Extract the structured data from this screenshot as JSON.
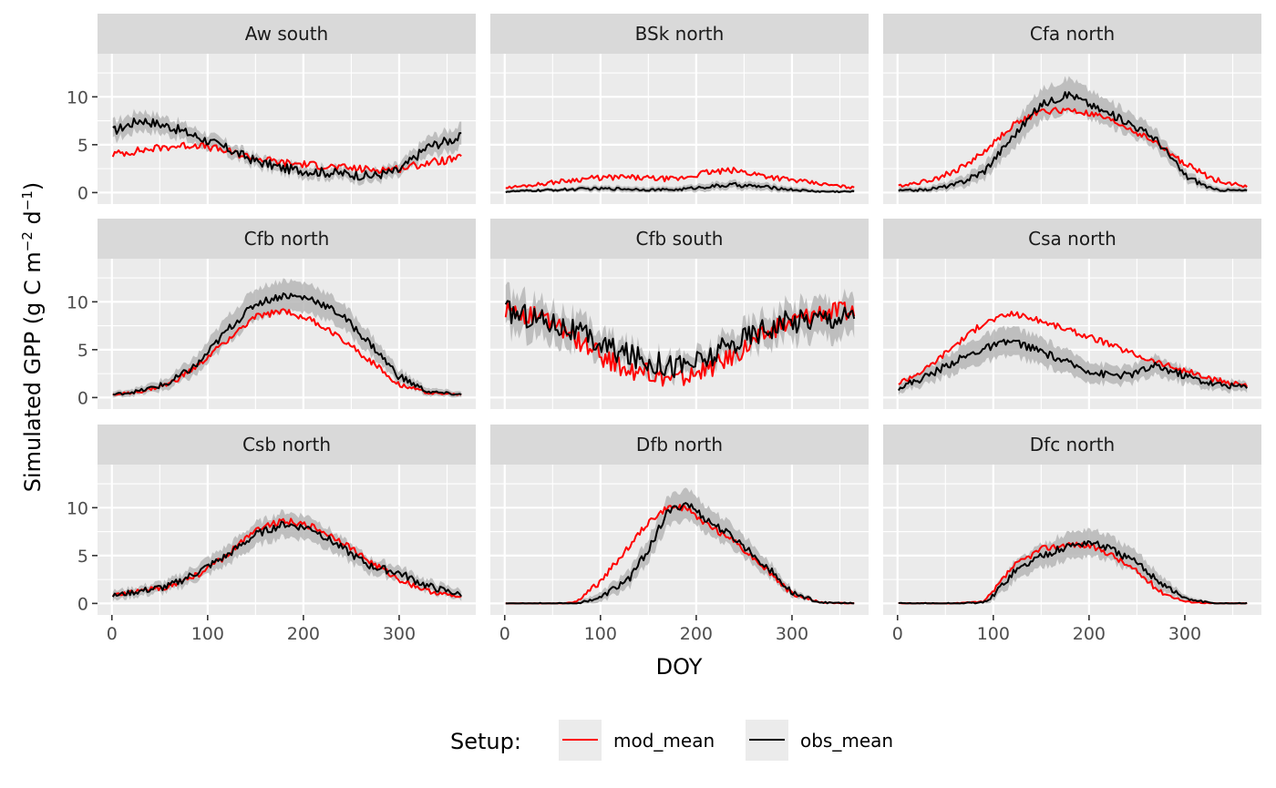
{
  "chart_data": {
    "type": "line",
    "facet_layout": "3x3",
    "xlabel": "DOY",
    "ylabel": "Simulated GPP (g C m^-2 d^-1)",
    "ylabel_parts": {
      "main": "Simulated GPP (g C m",
      "sup1": "−2",
      "mid": " d",
      "sup2": "−1",
      "end": ")"
    },
    "xlim": [
      -15,
      380
    ],
    "ylim": [
      -1.2,
      14.5
    ],
    "xticks": [
      0,
      100,
      200,
      300
    ],
    "yticks": [
      0,
      5,
      10
    ],
    "grid": true,
    "ribbon": "grey band around obs_mean",
    "legend": {
      "position": "bottom",
      "title": "Setup:",
      "entries": [
        {
          "name": "mod_mean",
          "color": "#ff0000"
        },
        {
          "name": "obs_mean",
          "color": "#000000"
        }
      ]
    },
    "panels": [
      {
        "title": "Aw south",
        "x": [
          1,
          30,
          60,
          90,
          120,
          150,
          180,
          210,
          240,
          270,
          300,
          330,
          365
        ],
        "mod_mean": [
          4.0,
          4.4,
          4.8,
          5.0,
          4.3,
          3.6,
          3.1,
          2.9,
          2.6,
          2.4,
          2.5,
          3.1,
          3.6
        ],
        "obs_mean": [
          6.4,
          7.6,
          6.9,
          5.8,
          4.6,
          3.3,
          2.5,
          2.2,
          2.0,
          1.7,
          2.3,
          4.8,
          5.8
        ],
        "obs_band": [
          1.0,
          1.0,
          0.9,
          0.8,
          0.7,
          0.6,
          0.6,
          0.6,
          0.6,
          0.6,
          0.7,
          1.0,
          1.2
        ]
      },
      {
        "title": "BSk north",
        "x": [
          1,
          30,
          60,
          90,
          120,
          150,
          180,
          210,
          240,
          270,
          300,
          330,
          365
        ],
        "mod_mean": [
          0.5,
          0.8,
          1.2,
          1.5,
          1.6,
          1.5,
          1.4,
          2.1,
          2.3,
          1.8,
          1.3,
          0.9,
          0.5
        ],
        "obs_mean": [
          0.1,
          0.2,
          0.3,
          0.4,
          0.4,
          0.3,
          0.3,
          0.6,
          0.8,
          0.6,
          0.3,
          0.1,
          0.1
        ],
        "obs_band": [
          0.2,
          0.2,
          0.2,
          0.3,
          0.3,
          0.3,
          0.3,
          0.4,
          0.4,
          0.4,
          0.3,
          0.2,
          0.2
        ]
      },
      {
        "title": "Cfa north",
        "x": [
          1,
          30,
          60,
          90,
          120,
          150,
          180,
          210,
          240,
          270,
          300,
          330,
          365
        ],
        "mod_mean": [
          0.7,
          1.2,
          2.2,
          4.2,
          7.0,
          8.5,
          8.6,
          8.0,
          6.8,
          5.2,
          3.0,
          1.4,
          0.6
        ],
        "obs_mean": [
          0.2,
          0.3,
          0.8,
          2.2,
          5.8,
          9.2,
          10.3,
          8.7,
          7.4,
          5.6,
          1.8,
          0.3,
          0.2
        ],
        "obs_band": [
          0.3,
          0.3,
          0.5,
          0.8,
          1.3,
          1.6,
          1.7,
          1.4,
          1.2,
          1.0,
          0.6,
          0.3,
          0.3
        ]
      },
      {
        "title": "Cfb north",
        "x": [
          1,
          30,
          60,
          90,
          120,
          150,
          180,
          210,
          240,
          270,
          300,
          330,
          365
        ],
        "mod_mean": [
          0.3,
          0.6,
          1.4,
          3.3,
          6.0,
          8.4,
          9.1,
          8.0,
          6.2,
          3.8,
          1.4,
          0.5,
          0.3
        ],
        "obs_mean": [
          0.3,
          0.7,
          1.5,
          3.5,
          7.0,
          9.8,
          10.7,
          10.3,
          8.6,
          5.6,
          2.2,
          0.6,
          0.3
        ],
        "obs_band": [
          0.3,
          0.4,
          0.6,
          1.0,
          1.4,
          1.6,
          1.6,
          1.5,
          1.3,
          1.1,
          0.7,
          0.4,
          0.3
        ]
      },
      {
        "title": "Cfb south",
        "x": [
          1,
          30,
          60,
          90,
          120,
          150,
          180,
          210,
          240,
          270,
          300,
          330,
          365
        ],
        "mod_mean": [
          9.3,
          8.5,
          7.2,
          5.0,
          3.2,
          2.5,
          1.9,
          2.8,
          4.5,
          6.5,
          8.0,
          9.0,
          9.0
        ],
        "obs_mean": [
          9.0,
          8.4,
          7.5,
          6.0,
          4.7,
          3.8,
          3.3,
          3.9,
          5.7,
          7.2,
          8.0,
          8.4,
          8.5
        ],
        "obs_band": [
          2.0,
          1.9,
          1.7,
          1.5,
          1.2,
          1.0,
          0.9,
          1.0,
          1.3,
          1.5,
          1.7,
          1.9,
          2.0
        ]
      },
      {
        "title": "Csa north",
        "x": [
          1,
          30,
          60,
          90,
          120,
          150,
          180,
          210,
          240,
          270,
          300,
          330,
          365
        ],
        "mod_mean": [
          1.5,
          3.0,
          5.5,
          7.8,
          8.8,
          8.0,
          7.0,
          6.0,
          4.8,
          3.7,
          2.8,
          1.8,
          1.3
        ],
        "obs_mean": [
          1.0,
          2.2,
          3.8,
          5.1,
          5.9,
          4.8,
          3.5,
          2.5,
          2.3,
          3.3,
          2.3,
          1.4,
          1.1
        ],
        "obs_band": [
          0.5,
          0.8,
          1.2,
          1.4,
          1.5,
          1.4,
          1.2,
          1.0,
          0.9,
          1.0,
          0.8,
          0.6,
          0.5
        ]
      },
      {
        "title": "Csb north",
        "x": [
          1,
          30,
          60,
          90,
          120,
          150,
          180,
          210,
          240,
          270,
          300,
          330,
          365
        ],
        "mod_mean": [
          0.8,
          1.3,
          1.8,
          3.0,
          5.0,
          7.8,
          8.7,
          8.0,
          6.5,
          4.3,
          2.5,
          1.3,
          0.6
        ],
        "obs_mean": [
          0.8,
          1.3,
          1.8,
          3.3,
          5.0,
          7.2,
          8.3,
          7.8,
          5.8,
          3.9,
          3.2,
          1.8,
          0.9
        ],
        "obs_band": [
          0.5,
          0.5,
          0.6,
          0.8,
          1.0,
          1.2,
          1.3,
          1.2,
          1.0,
          0.8,
          0.7,
          0.6,
          0.5
        ]
      },
      {
        "title": "Dfb north",
        "x": [
          1,
          30,
          60,
          75,
          100,
          130,
          150,
          170,
          190,
          210,
          240,
          270,
          300,
          330,
          365
        ],
        "mod_mean": [
          0.0,
          0.0,
          0.0,
          0.2,
          2.3,
          6.0,
          8.5,
          10.0,
          10.0,
          8.3,
          6.5,
          3.9,
          1.0,
          0.1,
          0.0
        ],
        "obs_mean": [
          0.0,
          0.0,
          0.0,
          0.0,
          0.6,
          2.6,
          5.6,
          9.5,
          10.5,
          8.8,
          6.8,
          4.2,
          1.1,
          0.1,
          0.0
        ],
        "obs_band": [
          0.1,
          0.1,
          0.1,
          0.2,
          0.5,
          0.9,
          1.2,
          1.5,
          1.6,
          1.4,
          1.2,
          0.9,
          0.4,
          0.1,
          0.1
        ]
      },
      {
        "title": "Dfc north",
        "x": [
          1,
          30,
          60,
          90,
          100,
          120,
          150,
          180,
          200,
          220,
          250,
          275,
          300,
          330,
          365
        ],
        "mod_mean": [
          0.0,
          0.0,
          0.0,
          0.2,
          1.2,
          3.8,
          5.7,
          6.2,
          6.0,
          5.3,
          3.3,
          1.2,
          0.2,
          0.0,
          0.0
        ],
        "obs_mean": [
          0.0,
          0.0,
          0.0,
          0.1,
          0.8,
          3.2,
          5.0,
          6.0,
          6.4,
          5.8,
          4.2,
          2.2,
          0.5,
          0.0,
          0.0
        ],
        "obs_band": [
          0.1,
          0.1,
          0.1,
          0.2,
          0.5,
          1.0,
          1.2,
          1.4,
          1.4,
          1.3,
          1.1,
          0.8,
          0.3,
          0.1,
          0.1
        ]
      }
    ]
  }
}
